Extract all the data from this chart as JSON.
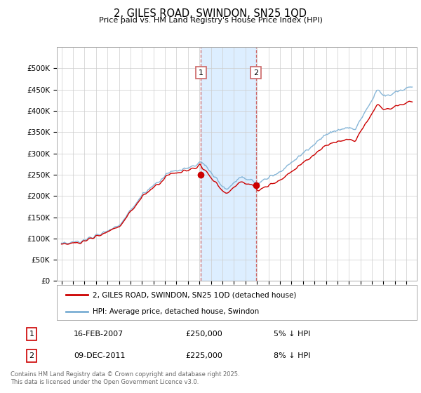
{
  "title": "2, GILES ROAD, SWINDON, SN25 1QD",
  "subtitle": "Price paid vs. HM Land Registry's House Price Index (HPI)",
  "ylim": [
    0,
    550000
  ],
  "yticks": [
    0,
    50000,
    100000,
    150000,
    200000,
    250000,
    300000,
    350000,
    400000,
    450000,
    500000
  ],
  "yticklabels": [
    "£0",
    "£50K",
    "£100K",
    "£150K",
    "£200K",
    "£250K",
    "£300K",
    "£350K",
    "£400K",
    "£450K",
    "£500K"
  ],
  "xlim_start": 1994.6,
  "xlim_end": 2025.9,
  "annotation1": {
    "label": "1",
    "date": "16-FEB-2007",
    "price": 250000,
    "price_str": "£250,000",
    "note": "5% ↓ HPI",
    "x_year": 2007.12
  },
  "annotation2": {
    "label": "2",
    "date": "09-DEC-2011",
    "price": 225000,
    "price_str": "£225,000",
    "note": "8% ↓ HPI",
    "x_year": 2011.92
  },
  "legend_label_red": "2, GILES ROAD, SWINDON, SN25 1QD (detached house)",
  "legend_label_blue": "HPI: Average price, detached house, Swindon",
  "footer": "Contains HM Land Registry data © Crown copyright and database right 2025.\nThis data is licensed under the Open Government Licence v3.0.",
  "red_color": "#cc0000",
  "blue_color": "#7bafd4",
  "shade_color": "#ddeeff",
  "vline_color": "#cc6666",
  "background_color": "#ffffff",
  "grid_color": "#cccccc"
}
